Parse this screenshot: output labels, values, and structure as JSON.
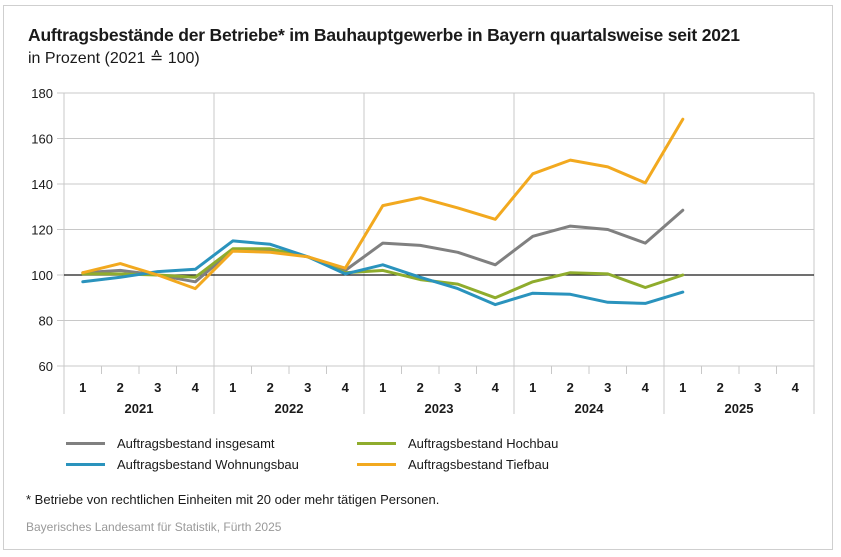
{
  "chart_data": {
    "type": "line",
    "title": "Auftragsbestände der Betriebe* im Bauhauptgewerbe in Bayern quartalsweise seit 2021",
    "subtitle": "in Prozent (2021 ≙ 100)",
    "xlabel": "",
    "ylabel": "",
    "ylim": [
      60,
      180
    ],
    "yticks": [
      60,
      80,
      100,
      120,
      140,
      160,
      180
    ],
    "reference_line": 100,
    "grid": true,
    "years": [
      "2021",
      "2022",
      "2023",
      "2024",
      "2025"
    ],
    "quarters": [
      "1",
      "2",
      "3",
      "4"
    ],
    "categories": [
      "2021 Q1",
      "2021 Q2",
      "2021 Q3",
      "2021 Q4",
      "2022 Q1",
      "2022 Q2",
      "2022 Q3",
      "2022 Q4",
      "2023 Q1",
      "2023 Q2",
      "2023 Q3",
      "2023 Q4",
      "2024 Q1",
      "2024 Q2",
      "2024 Q3",
      "2024 Q4",
      "2025 Q1",
      "2025 Q2",
      "2025 Q3",
      "2025 Q4"
    ],
    "series": [
      {
        "name": "Auftragsbestand insgesamt",
        "color": "#808080",
        "values": [
          101,
          102,
          100,
          97,
          111,
          111,
          108,
          102,
          114,
          113,
          110,
          104.5,
          117,
          121.5,
          120,
          114,
          128.5
        ]
      },
      {
        "name": "Auftragsbestand Hochbau",
        "color": "#8fac2d",
        "values": [
          100.5,
          100.5,
          100,
          99,
          111.5,
          111.5,
          108,
          101,
          102,
          98,
          96,
          90,
          97,
          101,
          100.5,
          94.5,
          100
        ]
      },
      {
        "name": "Auftragsbestand Wohnungsbau",
        "color": "#2a93bd",
        "values": [
          97,
          99,
          101.5,
          102.5,
          115,
          113.5,
          108,
          100.5,
          104.5,
          99,
          94,
          87,
          92,
          91.5,
          88,
          87.5,
          92.5
        ]
      },
      {
        "name": "Auftragsbestand Tiefbau",
        "color": "#f2a91f",
        "values": [
          101,
          105,
          100,
          94,
          110.5,
          110,
          108,
          103,
          130.5,
          134,
          129.5,
          124.5,
          144.5,
          150.5,
          147.5,
          140.5,
          168.5
        ]
      }
    ],
    "legend_position": "bottom"
  },
  "legend": [
    {
      "label": "Auftragsbestand insgesamt",
      "color": "#808080"
    },
    {
      "label": "Auftragsbestand Wohnungsbau",
      "color": "#2a93bd"
    },
    {
      "label": "Auftragsbestand Hochbau",
      "color": "#8fac2d"
    },
    {
      "label": "Auftragsbestand Tiefbau",
      "color": "#f2a91f"
    }
  ],
  "footnote": "* Betriebe von rechtlichen Einheiten mit 20 oder mehr tätigen Personen.",
  "source": "Bayerisches Landesamt für Statistik, Fürth 2025"
}
